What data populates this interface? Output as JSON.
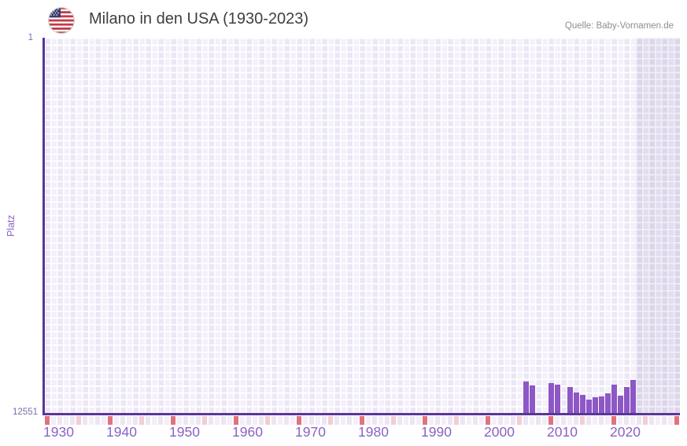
{
  "header": {
    "title": "Milano in den USA (1930-2023)",
    "source": "Quelle: Baby-Vornamen.de",
    "flag_icon": "us-flag-icon"
  },
  "chart_data": {
    "type": "bar",
    "title": "Milano in den USA (1930-2023)",
    "xlabel": "",
    "ylabel": "Platz",
    "y_axis": {
      "inverted": true,
      "top_tick_label": "1",
      "bottom_tick_label": "12551",
      "min": 1,
      "max": 12551
    },
    "x_axis": {
      "range_start_year": 1930,
      "range_end_year": 2031,
      "tick_labels": [
        "1930",
        "1940",
        "1950",
        "1960",
        "1970",
        "1980",
        "1990",
        "2000",
        "2010",
        "2020"
      ],
      "decade_marker_years": [
        1930,
        1940,
        1950,
        1960,
        1970,
        1980,
        1990,
        2000,
        2010,
        2020,
        2030
      ],
      "half_decade_marker_years": [
        1935,
        1945,
        1955,
        1965,
        1975,
        1985,
        1995,
        2005,
        2015,
        2025
      ]
    },
    "future_band": {
      "start_year": 2024,
      "end": "plot-right-edge"
    },
    "bars": [
      {
        "year": 2006,
        "rank": 11500
      },
      {
        "year": 2007,
        "rank": 11630
      },
      {
        "year": 2010,
        "rank": 11555
      },
      {
        "year": 2011,
        "rank": 11605
      },
      {
        "year": 2013,
        "rank": 11685
      },
      {
        "year": 2014,
        "rank": 11870
      },
      {
        "year": 2015,
        "rank": 11945
      },
      {
        "year": 2016,
        "rank": 12105
      },
      {
        "year": 2017,
        "rank": 12025
      },
      {
        "year": 2018,
        "rank": 12000
      },
      {
        "year": 2019,
        "rank": 11895
      },
      {
        "year": 2020,
        "rank": 11605
      },
      {
        "year": 2021,
        "rank": 11970
      },
      {
        "year": 2022,
        "rank": 11685
      },
      {
        "year": 2023,
        "rank": 11450
      }
    ],
    "colors": {
      "bar": "#8d57c5",
      "axis_line": "#5a3696",
      "x_tick_label": "#8a62c3",
      "y_tick_label": "#7c6daa",
      "decade_cell": "#e17380",
      "half_decade_cell": "#f2cdd6",
      "strip_cell_a": "#ece6f3",
      "strip_cell_b": "#f3eef9",
      "grid_col_a": "#ece7f5",
      "grid_col_b": "#f4f0fb",
      "title_text": "#3f3f3f",
      "source_text": "#8e8e8e"
    }
  }
}
